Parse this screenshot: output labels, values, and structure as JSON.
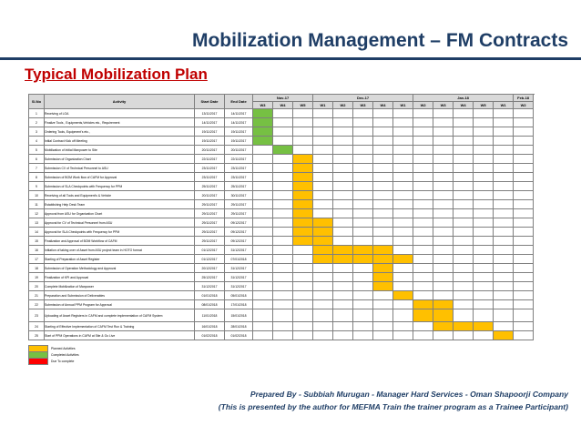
{
  "header": {
    "title": "Mobilization Management – FM Contracts",
    "subtitle": "Typical Mobilization Plan"
  },
  "table": {
    "columns": {
      "sno": "Sl.No",
      "activity": "Activity",
      "start": "Start Date",
      "end": "End Date"
    },
    "months": [
      {
        "label": "Nov-17",
        "span": 3
      },
      {
        "label": "Dec-17",
        "span": 5
      },
      {
        "label": "Jan-18",
        "span": 5
      },
      {
        "label": "Feb-18",
        "span": 2
      }
    ],
    "weeks": [
      "W3",
      "W4",
      "W5",
      "W1",
      "W2",
      "W3",
      "W4",
      "W1",
      "W2",
      "W3",
      "W4",
      "W5",
      "W1",
      "W2"
    ],
    "rows": [
      {
        "sno": "1",
        "activity": "Receiving of LOA",
        "start": "13/11/2017",
        "end": "14/11/2017",
        "bar": [
          0,
          0
        ],
        "color": "green"
      },
      {
        "sno": "2",
        "activity": "Finalize Tools , Equipments,Vehicles etc., Requirement",
        "start": "14/11/2017",
        "end": "14/11/2017",
        "bar": [
          0,
          0
        ],
        "color": "green"
      },
      {
        "sno": "3",
        "activity": "Ordering Tools, Equipment's etc.,",
        "start": "19/11/2017",
        "end": "19/11/2017",
        "bar": [
          0,
          0
        ],
        "color": "green"
      },
      {
        "sno": "4",
        "activity": "Initial Contract Kick off Meeting",
        "start": "19/11/2017",
        "end": "19/11/2017",
        "bar": [
          0,
          0
        ],
        "color": "green"
      },
      {
        "sno": "5",
        "activity": "Mobilization of Initial Manpower to Site",
        "start": "20/11/2017",
        "end": "20/11/2017",
        "bar": [
          1,
          1
        ],
        "color": "green"
      },
      {
        "sno": "6",
        "activity": "Submission of Organization Chart",
        "start": "22/11/2017",
        "end": "22/11/2017",
        "bar": [
          2,
          2
        ],
        "color": "yellow"
      },
      {
        "sno": "7",
        "activity": "Submission CV of Technical Personnel to ASU",
        "start": "23/11/2017",
        "end": "23/11/2017",
        "bar": [
          2,
          2
        ],
        "color": "yellow"
      },
      {
        "sno": "8",
        "activity": "Submission of BOM Work flow of CAFM for Approval",
        "start": "23/11/2017",
        "end": "23/11/2017",
        "bar": [
          2,
          2
        ],
        "color": "yellow"
      },
      {
        "sno": "9",
        "activity": "Submission of SLA Checkpoints with Frequency for PPM",
        "start": "25/11/2017",
        "end": "25/11/2017",
        "bar": [
          2,
          2
        ],
        "color": "yellow"
      },
      {
        "sno": "10",
        "activity": "Receiving of all Tools and Equipment's & Vehicle",
        "start": "20/11/2017",
        "end": "30/11/2017",
        "bar": [
          2,
          2
        ],
        "color": "yellow"
      },
      {
        "sno": "11",
        "activity": "Establishing Help Desk Team",
        "start": "29/11/2017",
        "end": "29/11/2017",
        "bar": [
          2,
          2
        ],
        "color": "yellow"
      },
      {
        "sno": "12",
        "activity": "Approval from ASU for Organization Chart",
        "start": "29/11/2017",
        "end": "29/11/2017",
        "bar": [
          2,
          2
        ],
        "color": "yellow"
      },
      {
        "sno": "13",
        "activity": "Approval for CV of Technical Personnel from ASU",
        "start": "29/11/2017",
        "end": "09/12/2017",
        "bar": [
          2,
          3
        ],
        "color": "yellow"
      },
      {
        "sno": "14",
        "activity": "Approval for SLA Checkpoints with Frequency for PPM",
        "start": "29/11/2017",
        "end": "09/12/2017",
        "bar": [
          2,
          3
        ],
        "color": "yellow"
      },
      {
        "sno": "15",
        "activity": "Finalization and Approval of BOM Workflow of CAFM",
        "start": "29/11/2017",
        "end": "09/12/2017",
        "bar": [
          2,
          3
        ],
        "color": "yellow"
      },
      {
        "sno": "16",
        "activity": "Initiation of taking over of Asset from ASU project team in HOTO format",
        "start": "01/12/2017",
        "end": "31/12/2017",
        "bar": [
          3,
          6
        ],
        "color": "yellow"
      },
      {
        "sno": "17",
        "activity": "Starting of Preparation of Asset Register",
        "start": "01/12/2017",
        "end": "07/01/2018",
        "bar": [
          3,
          7
        ],
        "color": "yellow"
      },
      {
        "sno": "18",
        "activity": "Submission of Operation Methodology and Approval",
        "start": "20/12/2017",
        "end": "31/12/2017",
        "bar": [
          6,
          6
        ],
        "color": "yellow"
      },
      {
        "sno": "19",
        "activity": "Finalization of KPI and Approval",
        "start": "25/12/2017",
        "end": "31/12/2017",
        "bar": [
          6,
          6
        ],
        "color": "yellow"
      },
      {
        "sno": "20",
        "activity": "Complete Mobilization of Manpower",
        "start": "31/12/2017",
        "end": "31/12/2017",
        "bar": [
          6,
          6
        ],
        "color": "yellow"
      },
      {
        "sno": "21",
        "activity": "Preparation and Submission of Deliverables",
        "start": "01/01/2018",
        "end": "05/01/2018",
        "bar": [
          7,
          7
        ],
        "color": "yellow"
      },
      {
        "sno": "22",
        "activity": "Submission of Annual PPM Program for Approval",
        "start": "08/01/2018",
        "end": "17/01/2018",
        "bar": [
          8,
          9
        ],
        "color": "yellow"
      },
      {
        "sno": "23",
        "activity": "Uploading of Asset Registers in CAFM and complete implementation of CAFM System",
        "start": "11/01/2018",
        "end": "15/01/2018",
        "bar": [
          8,
          9
        ],
        "color": "yellow",
        "tall": true
      },
      {
        "sno": "24",
        "activity": "Starting of Effective Implementation of CAFM Test Run & Training",
        "start": "16/01/2018",
        "end": "28/01/2018",
        "bar": [
          9,
          11
        ],
        "color": "yellow"
      },
      {
        "sno": "25",
        "activity": "Start of PPM Operations in CAFM at Site & Go Live",
        "start": "01/02/2018",
        "end": "01/02/2018",
        "bar": [
          12,
          12
        ],
        "color": "yellow"
      }
    ]
  },
  "legend": [
    {
      "label": "Planned Activities",
      "color": "#ffc000"
    },
    {
      "label": "Completed Activities",
      "color": "#76c043"
    },
    {
      "label": "Due To complete",
      "color": "#ff0000"
    }
  ],
  "footer": {
    "line1": "Prepared By - Subbiah Murugan - Manager Hard Services - Oman Shapoorji Company",
    "line2": "(This is presented by the author for MEFMA Train the trainer program as a Trainee Participant)"
  }
}
